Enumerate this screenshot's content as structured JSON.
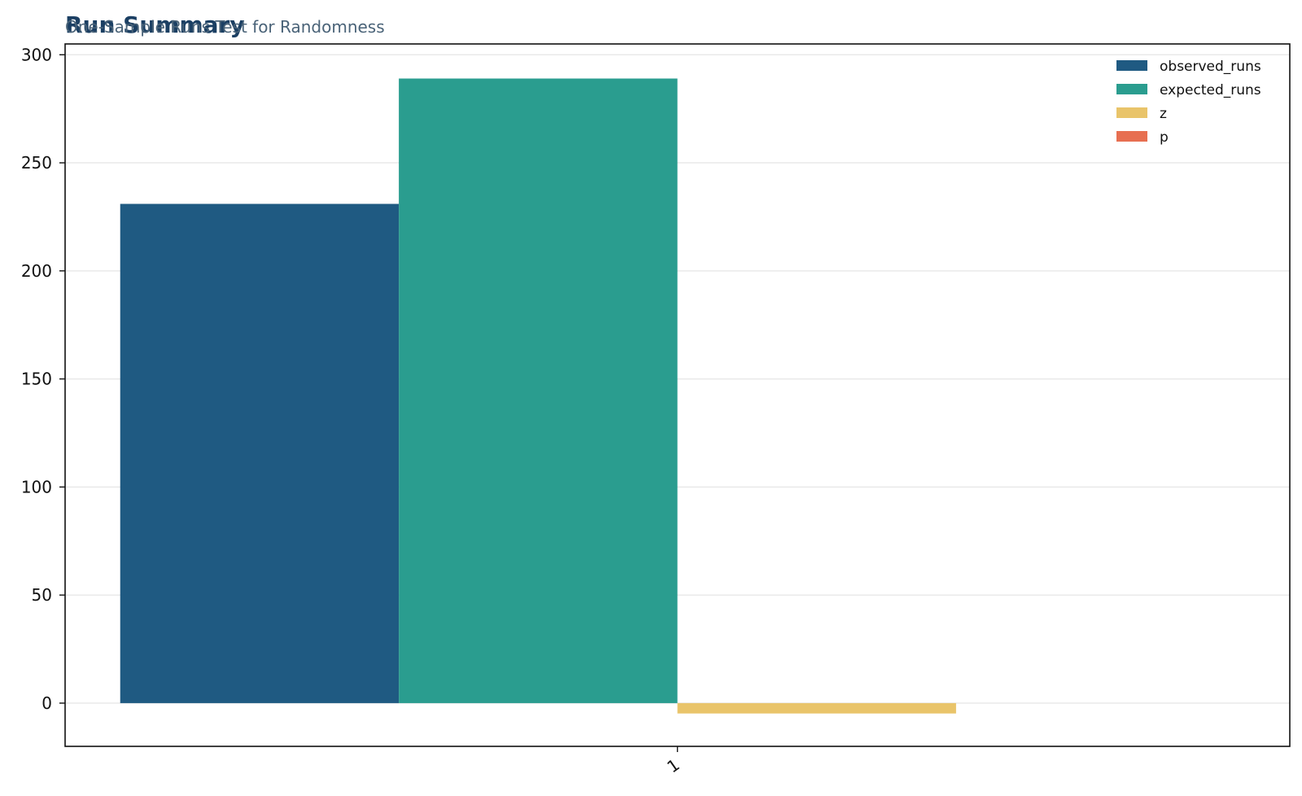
{
  "chart_data": {
    "type": "bar",
    "title": "Run Summary",
    "subtitle": "One-Sample Runs Test for Randomness",
    "xlabel": "",
    "ylabel": "",
    "categories": [
      "1"
    ],
    "series": [
      {
        "name": "observed_runs",
        "color": "#1f5a82",
        "values": [
          231
        ]
      },
      {
        "name": "expected_runs",
        "color": "#2a9d8f",
        "values": [
          289
        ]
      },
      {
        "name": "z",
        "color": "#e9c46a",
        "values": [
          -4.8
        ]
      },
      {
        "name": "p",
        "color": "#e76f51",
        "values": [
          0.0
        ]
      }
    ],
    "ylim": [
      -20,
      305
    ],
    "yticks": [
      0,
      50,
      100,
      150,
      200,
      250,
      300
    ],
    "grid": true,
    "legend": "top-right"
  }
}
